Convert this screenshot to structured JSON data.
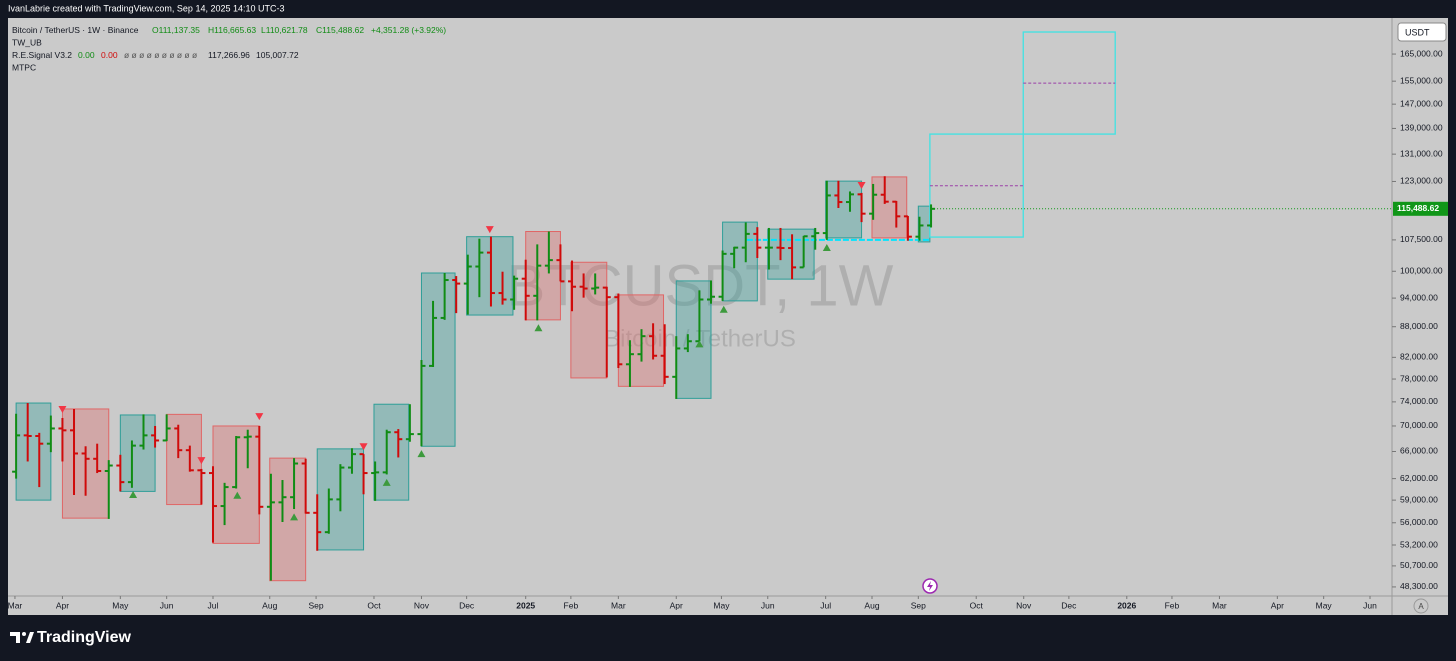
{
  "top_bar": {
    "text": "IvanLabrie created with TradingView.com, Sep 14, 2025 14:10 UTC-3"
  },
  "legend": {
    "ohlc": [
      "O111,137.35",
      "H116,665.63",
      "L110,621.78",
      "C115,488.62",
      "+4,351.28 (+3.92%)"
    ],
    "indicators": [
      "TW_UB",
      "R.E.Signal V3.2",
      "MTPC"
    ],
    "signal_values": [
      "0.00",
      "0.00",
      "ø ø ø ø ø ø ø ø ø ø",
      "117,266.96",
      "105,007.72"
    ]
  },
  "watermark": {
    "symbol": "BTCUSDT, 1W",
    "name": "Bitcoin / TetherUS"
  },
  "ui": {
    "currency": "USDT",
    "auto_scale": "A",
    "brand": "TradingView"
  },
  "chart_data": {
    "type": "ohlc",
    "title": "Bitcoin / TetherUS · 1W · Binance",
    "log_scale": true,
    "up_color": "#108c14",
    "down_color": "#d00a0a",
    "x": [
      0,
      1,
      2,
      3,
      4,
      5,
      6,
      7,
      8,
      9,
      10,
      11,
      12,
      13,
      14,
      15,
      16,
      17,
      18,
      19,
      20,
      21,
      22,
      23,
      24,
      25,
      26,
      27,
      28,
      29,
      30,
      31,
      32,
      33,
      34,
      35,
      36,
      37,
      38,
      39,
      40,
      41,
      42,
      43,
      44,
      45,
      46,
      47,
      48,
      49,
      50,
      51,
      52,
      53,
      54,
      55,
      56,
      57,
      58,
      59,
      60,
      61,
      62,
      63,
      64,
      65,
      66,
      67,
      68,
      69,
      70,
      71,
      72,
      73,
      74,
      75,
      76,
      77,
      78,
      79
    ],
    "open": [
      63000,
      68500,
      68400,
      67200,
      69600,
      69300,
      65700,
      64900,
      63100,
      63900,
      61500,
      66900,
      68500,
      67700,
      69600,
      66200,
      63200,
      62800,
      58200,
      60800,
      68200,
      68300,
      58100,
      58700,
      59400,
      64200,
      57300,
      54800,
      59100,
      63600,
      65600,
      62800,
      62900,
      69000,
      67900,
      68700,
      80400,
      89800,
      98000,
      97200,
      101100,
      104400,
      95100,
      93700,
      98300,
      94500,
      101300,
      102600,
      97700,
      96500,
      96100,
      96300,
      94200,
      80700,
      82600,
      86100,
      82300,
      78400,
      83700,
      85100,
      93700,
      94300,
      104100,
      105600,
      109000,
      105600,
      105600,
      105500,
      100900,
      108400,
      109200,
      119100,
      117300,
      119400,
      114200,
      119300,
      117400,
      113500,
      108300,
      111137.35
    ],
    "high": [
      72000,
      73800,
      68900,
      71700,
      71300,
      72800,
      66800,
      67200,
      64700,
      65500,
      67700,
      71900,
      70000,
      71900,
      70200,
      66900,
      63400,
      63800,
      61400,
      68400,
      69400,
      70000,
      62700,
      61800,
      65000,
      64900,
      59800,
      60600,
      64100,
      66500,
      65600,
      64500,
      69400,
      69500,
      73600,
      81500,
      93400,
      99600,
      98900,
      103900,
      107800,
      108300,
      99900,
      99000,
      102700,
      106400,
      109600,
      106400,
      102500,
      99500,
      99500,
      96500,
      95000,
      85300,
      87500,
      88700,
      88500,
      86100,
      86500,
      95700,
      97900,
      104900,
      105800,
      111900,
      110700,
      110500,
      110500,
      108900,
      108500,
      110500,
      123200,
      123200,
      120200,
      119800,
      122300,
      124500,
      117600,
      113600,
      113400,
      116665.63
    ],
    "low": [
      62000,
      64500,
      60800,
      65900,
      64500,
      59700,
      59600,
      62800,
      56500,
      60200,
      60700,
      66300,
      66600,
      67600,
      65000,
      63000,
      58400,
      53500,
      55700,
      60600,
      63500,
      57100,
      49000,
      56100,
      57800,
      57200,
      52500,
      54600,
      57500,
      62700,
      59800,
      58900,
      62600,
      65100,
      67500,
      66800,
      80200,
      89400,
      90800,
      90500,
      94200,
      92200,
      92600,
      91500,
      89300,
      89300,
      99500,
      97700,
      91200,
      94100,
      94800,
      78300,
      80000,
      76600,
      81200,
      81600,
      77100,
      74500,
      83000,
      85100,
      92800,
      93400,
      100700,
      102100,
      103100,
      100400,
      102600,
      98200,
      100900,
      105100,
      107500,
      115700,
      114700,
      112000,
      112600,
      116800,
      110600,
      107300,
      107300,
      110621.78
    ],
    "close": [
      68500,
      68400,
      67200,
      69600,
      69300,
      65700,
      64900,
      63100,
      63900,
      61500,
      66900,
      68500,
      67700,
      69600,
      66200,
      63200,
      62800,
      58200,
      60800,
      68200,
      68300,
      58100,
      58700,
      59400,
      64200,
      57300,
      54800,
      59100,
      63600,
      65600,
      62800,
      62900,
      69000,
      67900,
      68700,
      80400,
      89800,
      98000,
      97200,
      101100,
      104400,
      95100,
      93700,
      98300,
      94500,
      101300,
      102600,
      97700,
      96500,
      96100,
      96300,
      94200,
      80700,
      82600,
      86100,
      82300,
      78400,
      83700,
      85100,
      93700,
      94300,
      104100,
      105600,
      109000,
      105600,
      105600,
      105500,
      100900,
      108400,
      109200,
      119100,
      117300,
      119400,
      114200,
      119300,
      117400,
      113500,
      108300,
      111137.35,
      115488.62
    ],
    "last_price": {
      "value": 115488.62,
      "label": "115,488.62",
      "color": "#109618"
    },
    "ranges": {
      "x_start": [
        0,
        4,
        9,
        13,
        17,
        21.9,
        26,
        30.9,
        35,
        38.9,
        44,
        47.9,
        52,
        57,
        61,
        64.9,
        69.9,
        73.9,
        77.9
      ],
      "x_end": [
        3,
        8,
        12,
        16,
        21,
        25,
        30,
        33.9,
        37.9,
        42.9,
        47,
        51,
        55.9,
        60,
        64,
        68.9,
        73,
        76.9,
        78.9
      ],
      "high": [
        73800,
        72800,
        71800,
        71900,
        70000,
        65000,
        66400,
        73600,
        99600,
        108300,
        109600,
        102100,
        94700,
        97800,
        112000,
        110200,
        123100,
        124300,
        116200
      ],
      "low": [
        59000,
        56600,
        60200,
        58400,
        53400,
        49000,
        52600,
        59000,
        66800,
        90400,
        89400,
        78200,
        76700,
        74600,
        93400,
        98200,
        108000,
        108000,
        107000
      ],
      "colors": [
        "#2e9e98",
        "#e06666",
        "#2e9e98",
        "#e06666",
        "#e06666",
        "#e06666",
        "#2e9e98",
        "#2e9e98",
        "#2e9e98",
        "#2e9e98",
        "#e06666",
        "#e06666",
        "#e06666",
        "#2e9e98",
        "#2e9e98",
        "#2e9e98",
        "#2e9e98",
        "#e06666",
        "#2e9e98"
      ]
    },
    "projection": {
      "color": "#3fe3e3",
      "x_start": [
        78.9,
        86.96
      ],
      "x_end": [
        86.96,
        94.9
      ],
      "top": [
        137200,
        173600
      ],
      "bottom": [
        108200,
        137200
      ]
    },
    "targets": {
      "color": "#9b3fa8",
      "x_start": [
        78.9,
        86.96
      ],
      "x_end": [
        86.96,
        94.9
      ],
      "values": [
        121800,
        154300
      ]
    },
    "support": {
      "color": "#00e5ff",
      "x_start": 63.1,
      "x_end": 78.9,
      "value": 107500
    },
    "signals": {
      "down": {
        "color": "#f23645",
        "x": [
          4,
          16,
          21,
          30,
          40.9,
          73
        ],
        "values": [
          72800,
          64700,
          71600,
          66800,
          110200,
          122000
        ]
      },
      "up": {
        "color": "#3d9a3d",
        "x": [
          10.1,
          19.1,
          24,
          32,
          35,
          45.1,
          59,
          61.1,
          70
        ],
        "values": [
          59700,
          59600,
          56700,
          61400,
          65600,
          87700,
          84500,
          91500,
          105500
        ]
      }
    },
    "xlim": [
      -0.7,
      118.8
    ],
    "xticks": [
      {
        "value": -0.1,
        "label": "Mar"
      },
      {
        "value": 4,
        "label": "Apr"
      },
      {
        "value": 9,
        "label": "May"
      },
      {
        "value": 13,
        "label": "Jun"
      },
      {
        "value": 17,
        "label": "Jul"
      },
      {
        "value": 21.9,
        "label": "Aug"
      },
      {
        "value": 25.9,
        "label": "Sep"
      },
      {
        "value": 30.9,
        "label": "Oct"
      },
      {
        "value": 35,
        "label": "Nov"
      },
      {
        "value": 38.9,
        "label": "Dec"
      },
      {
        "value": 44,
        "label": "2025"
      },
      {
        "value": 47.9,
        "label": "Feb"
      },
      {
        "value": 52,
        "label": "Mar"
      },
      {
        "value": 57,
        "label": "Apr"
      },
      {
        "value": 60.9,
        "label": "May"
      },
      {
        "value": 64.9,
        "label": "Jun"
      },
      {
        "value": 69.9,
        "label": "Jul"
      },
      {
        "value": 73.9,
        "label": "Aug"
      },
      {
        "value": 77.9,
        "label": "Sep"
      },
      {
        "value": 82.9,
        "label": "Oct"
      },
      {
        "value": 87,
        "label": "Nov"
      },
      {
        "value": 90.9,
        "label": "Dec"
      },
      {
        "value": 95.9,
        "label": "2026"
      },
      {
        "value": 99.8,
        "label": "Feb"
      },
      {
        "value": 103.9,
        "label": "Mar"
      },
      {
        "value": 108.9,
        "label": "Apr"
      },
      {
        "value": 112.9,
        "label": "May"
      },
      {
        "value": 116.9,
        "label": "Jun"
      }
    ],
    "ylim": [
      47300,
      179300
    ],
    "yticks": [
      {
        "value": 165000,
        "label": "165,000.00"
      },
      {
        "value": 155000,
        "label": "155,000.00"
      },
      {
        "value": 147000,
        "label": "147,000.00"
      },
      {
        "value": 139000,
        "label": "139,000.00"
      },
      {
        "value": 131000,
        "label": "131,000.00"
      },
      {
        "value": 123000,
        "label": "123,000.00"
      },
      {
        "value": 107500,
        "label": "107,500.00"
      },
      {
        "value": 100000,
        "label": "100,000.00"
      },
      {
        "value": 94000,
        "label": "94,000.00"
      },
      {
        "value": 88000,
        "label": "88,000.00"
      },
      {
        "value": 82000,
        "label": "82,000.00"
      },
      {
        "value": 78000,
        "label": "78,000.00"
      },
      {
        "value": 74000,
        "label": "74,000.00"
      },
      {
        "value": 70000,
        "label": "70,000.00"
      },
      {
        "value": 66000,
        "label": "66,000.00"
      },
      {
        "value": 62000,
        "label": "62,000.00"
      },
      {
        "value": 59000,
        "label": "59,000.00"
      },
      {
        "value": 56000,
        "label": "56,000.00"
      },
      {
        "value": 53200,
        "label": "53,200.00"
      },
      {
        "value": 50700,
        "label": "50,700.00"
      },
      {
        "value": 48300,
        "label": "48,300.00"
      }
    ]
  }
}
